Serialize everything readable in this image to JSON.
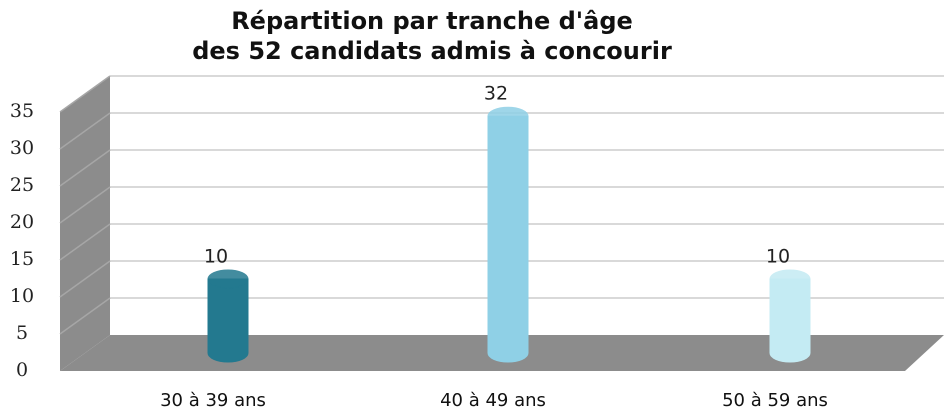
{
  "chart_data": {
    "type": "bar3d",
    "title": [
      "Répartition par tranche d'âge",
      "des 52 candidats admis à concourir"
    ],
    "categories": [
      "30 à 39 ans",
      "40 à 49 ans",
      "50 à 59 ans"
    ],
    "values": [
      10,
      32,
      10
    ],
    "colors": [
      "#23798f",
      "#8fd0e6",
      "#c4ebf3"
    ],
    "ylim": [
      0,
      35
    ],
    "yticks": [
      0,
      5,
      10,
      15,
      20,
      25,
      30,
      35
    ],
    "grid": true
  }
}
